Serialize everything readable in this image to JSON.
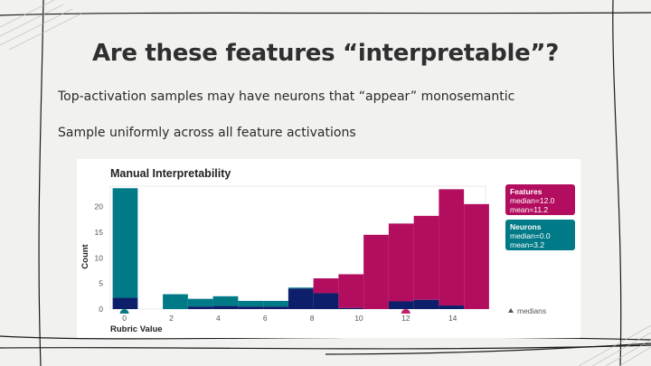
{
  "slide": {
    "title": "Are these features “interpretable”?",
    "bullets": [
      "Top-activation samples may have neurons that “appear” monosemantic",
      "Sample uniformly across all feature activations"
    ]
  },
  "colors": {
    "features": "#b20d5e",
    "neurons": "#007a86",
    "overlap": "#0d1f6b",
    "median_features": "#c0206a",
    "median_neurons": "#0b7a83"
  },
  "chart_data": {
    "type": "bar",
    "title": "Manual Interpretability",
    "xlabel": "Rubric Value",
    "ylabel": "Count",
    "xlim": [
      -0.6,
      15.4
    ],
    "ylim": [
      0,
      24
    ],
    "xticks": [
      0,
      2,
      4,
      6,
      8,
      10,
      12,
      14
    ],
    "yticks": [
      0,
      5,
      10,
      15,
      20
    ],
    "grid": false,
    "bin_width": 1.07,
    "bin_starts": [
      -0.5,
      0.57,
      1.64,
      2.71,
      3.78,
      4.85,
      5.92,
      6.99,
      8.06,
      9.13,
      10.2,
      11.27,
      12.34,
      13.41,
      14.48
    ],
    "series": [
      {
        "name": "Features",
        "values": [
          2.2,
          0,
          0,
          0.5,
          0.6,
          0.5,
          0.5,
          4,
          6,
          6.8,
          14.5,
          16.7,
          18.2,
          23.4,
          20.5
        ]
      },
      {
        "name": "Neurons",
        "values": [
          23.6,
          0,
          2.9,
          2,
          2.5,
          1.6,
          1.6,
          4.2,
          3.1,
          0.2,
          0,
          1.5,
          1.8,
          0.7,
          0
        ]
      }
    ],
    "legend": [
      {
        "name": "Features",
        "median_label": "median=12.0",
        "mean_label": "mean=11.2"
      },
      {
        "name": "Neurons",
        "median_label": "median=0.0",
        "mean_label": "mean=3.2"
      }
    ],
    "legend_position": "right",
    "medians": {
      "label": "medians",
      "Features": 12.0,
      "Neurons": 0.0
    }
  }
}
